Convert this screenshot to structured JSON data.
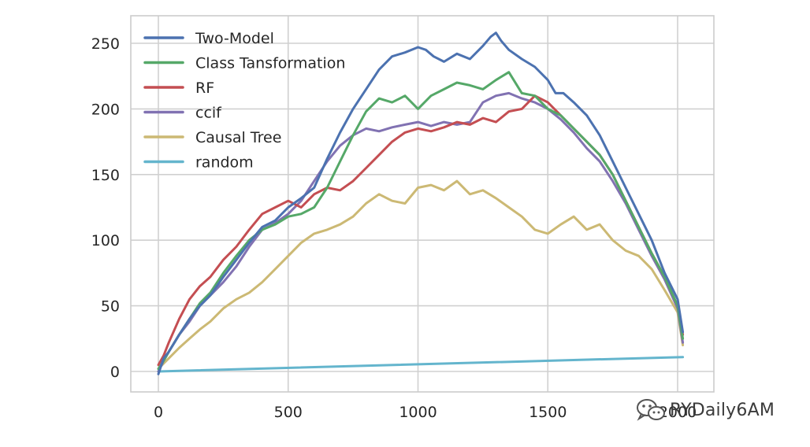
{
  "chart_data": {
    "type": "line",
    "title": "",
    "xlabel": "",
    "ylabel": "",
    "xlim": [
      -100,
      2100
    ],
    "ylim": [
      -10,
      270
    ],
    "x_ticks": [
      0,
      500,
      1000,
      1500,
      2000
    ],
    "x_tick_labels": [
      "0",
      "500",
      "1000",
      "1500",
      "2000"
    ],
    "y_ticks": [
      0,
      50,
      100,
      150,
      200,
      250
    ],
    "y_tick_labels": [
      "0",
      "50",
      "100",
      "150",
      "200",
      "250"
    ],
    "grid": true,
    "legend_placement": "top-left",
    "series": [
      {
        "name": "Two-Model",
        "color": "#4c72b0",
        "x": [
          0,
          20,
          40,
          80,
          120,
          160,
          200,
          250,
          300,
          350,
          400,
          450,
          500,
          550,
          600,
          650,
          700,
          750,
          800,
          850,
          900,
          950,
          1000,
          1030,
          1060,
          1100,
          1150,
          1200,
          1250,
          1280,
          1300,
          1320,
          1350,
          1400,
          1450,
          1500,
          1530,
          1560,
          1600,
          1650,
          1700,
          1750,
          1800,
          1850,
          1900,
          1950,
          2000,
          2020
        ],
        "y": [
          -2,
          10,
          15,
          28,
          40,
          50,
          58,
          72,
          85,
          98,
          110,
          115,
          125,
          132,
          140,
          162,
          182,
          200,
          215,
          230,
          240,
          243,
          247,
          245,
          240,
          236,
          242,
          238,
          248,
          255,
          258,
          252,
          245,
          238,
          232,
          222,
          212,
          212,
          205,
          195,
          180,
          160,
          140,
          120,
          100,
          75,
          55,
          30
        ]
      },
      {
        "name": "Class Tansformation",
        "color": "#55a868",
        "x": [
          0,
          20,
          40,
          80,
          120,
          160,
          200,
          250,
          300,
          350,
          400,
          450,
          500,
          550,
          600,
          650,
          700,
          750,
          800,
          850,
          900,
          950,
          1000,
          1050,
          1100,
          1150,
          1200,
          1250,
          1300,
          1350,
          1400,
          1450,
          1500,
          1550,
          1600,
          1650,
          1700,
          1750,
          1800,
          1850,
          1900,
          1950,
          2000,
          2020
        ],
        "y": [
          2,
          8,
          15,
          28,
          40,
          52,
          60,
          75,
          88,
          100,
          108,
          112,
          118,
          120,
          125,
          140,
          160,
          180,
          198,
          208,
          205,
          210,
          200,
          210,
          215,
          220,
          218,
          215,
          222,
          228,
          212,
          210,
          200,
          195,
          185,
          175,
          165,
          150,
          130,
          110,
          90,
          72,
          50,
          25
        ]
      },
      {
        "name": "RF",
        "color": "#c44e52",
        "x": [
          0,
          20,
          40,
          80,
          120,
          160,
          200,
          250,
          300,
          350,
          400,
          450,
          500,
          550,
          600,
          650,
          700,
          750,
          800,
          850,
          900,
          950,
          1000,
          1050,
          1100,
          1150,
          1200,
          1250,
          1300,
          1350,
          1400,
          1450,
          1500,
          1550,
          1600,
          1650,
          1700,
          1750,
          1800,
          1850,
          1900,
          1950,
          2000,
          2020
        ],
        "y": [
          5,
          12,
          22,
          40,
          55,
          65,
          72,
          85,
          95,
          108,
          120,
          125,
          130,
          125,
          135,
          140,
          138,
          145,
          155,
          165,
          175,
          182,
          185,
          183,
          186,
          190,
          188,
          193,
          190,
          198,
          200,
          210,
          205,
          195,
          185,
          175,
          165,
          150,
          130,
          110,
          90,
          72,
          50,
          28
        ]
      },
      {
        "name": "ccif",
        "color": "#8172b2",
        "x": [
          0,
          20,
          40,
          80,
          120,
          160,
          200,
          250,
          300,
          350,
          400,
          450,
          500,
          550,
          600,
          650,
          700,
          750,
          800,
          850,
          900,
          950,
          1000,
          1050,
          1100,
          1150,
          1200,
          1250,
          1300,
          1350,
          1400,
          1450,
          1500,
          1550,
          1600,
          1650,
          1700,
          1750,
          1800,
          1850,
          1900,
          1950,
          2000,
          2020
        ],
        "y": [
          0,
          8,
          15,
          28,
          38,
          50,
          58,
          68,
          80,
          95,
          108,
          113,
          120,
          130,
          145,
          160,
          172,
          180,
          185,
          183,
          186,
          188,
          190,
          187,
          190,
          188,
          190,
          205,
          210,
          212,
          208,
          205,
          200,
          192,
          182,
          170,
          160,
          145,
          128,
          108,
          88,
          70,
          48,
          22
        ]
      },
      {
        "name": "Causal Tree",
        "color": "#ccb974",
        "x": [
          0,
          20,
          40,
          80,
          120,
          160,
          200,
          250,
          300,
          350,
          400,
          450,
          500,
          550,
          600,
          650,
          700,
          750,
          800,
          850,
          900,
          950,
          1000,
          1050,
          1100,
          1150,
          1200,
          1250,
          1300,
          1350,
          1400,
          1450,
          1500,
          1550,
          1600,
          1650,
          1700,
          1750,
          1800,
          1850,
          1900,
          1950,
          2000,
          2020
        ],
        "y": [
          2,
          6,
          10,
          18,
          25,
          32,
          38,
          48,
          55,
          60,
          68,
          78,
          88,
          98,
          105,
          108,
          112,
          118,
          128,
          135,
          130,
          128,
          140,
          142,
          138,
          145,
          135,
          138,
          132,
          125,
          118,
          108,
          105,
          112,
          118,
          108,
          112,
          100,
          92,
          88,
          78,
          62,
          45,
          20
        ]
      },
      {
        "name": "random",
        "color": "#64b5cd",
        "x": [
          0,
          2020
        ],
        "y": [
          0,
          11
        ]
      }
    ]
  },
  "watermark": {
    "text": "RYDaily6AM",
    "icon": "wechat-icon"
  }
}
